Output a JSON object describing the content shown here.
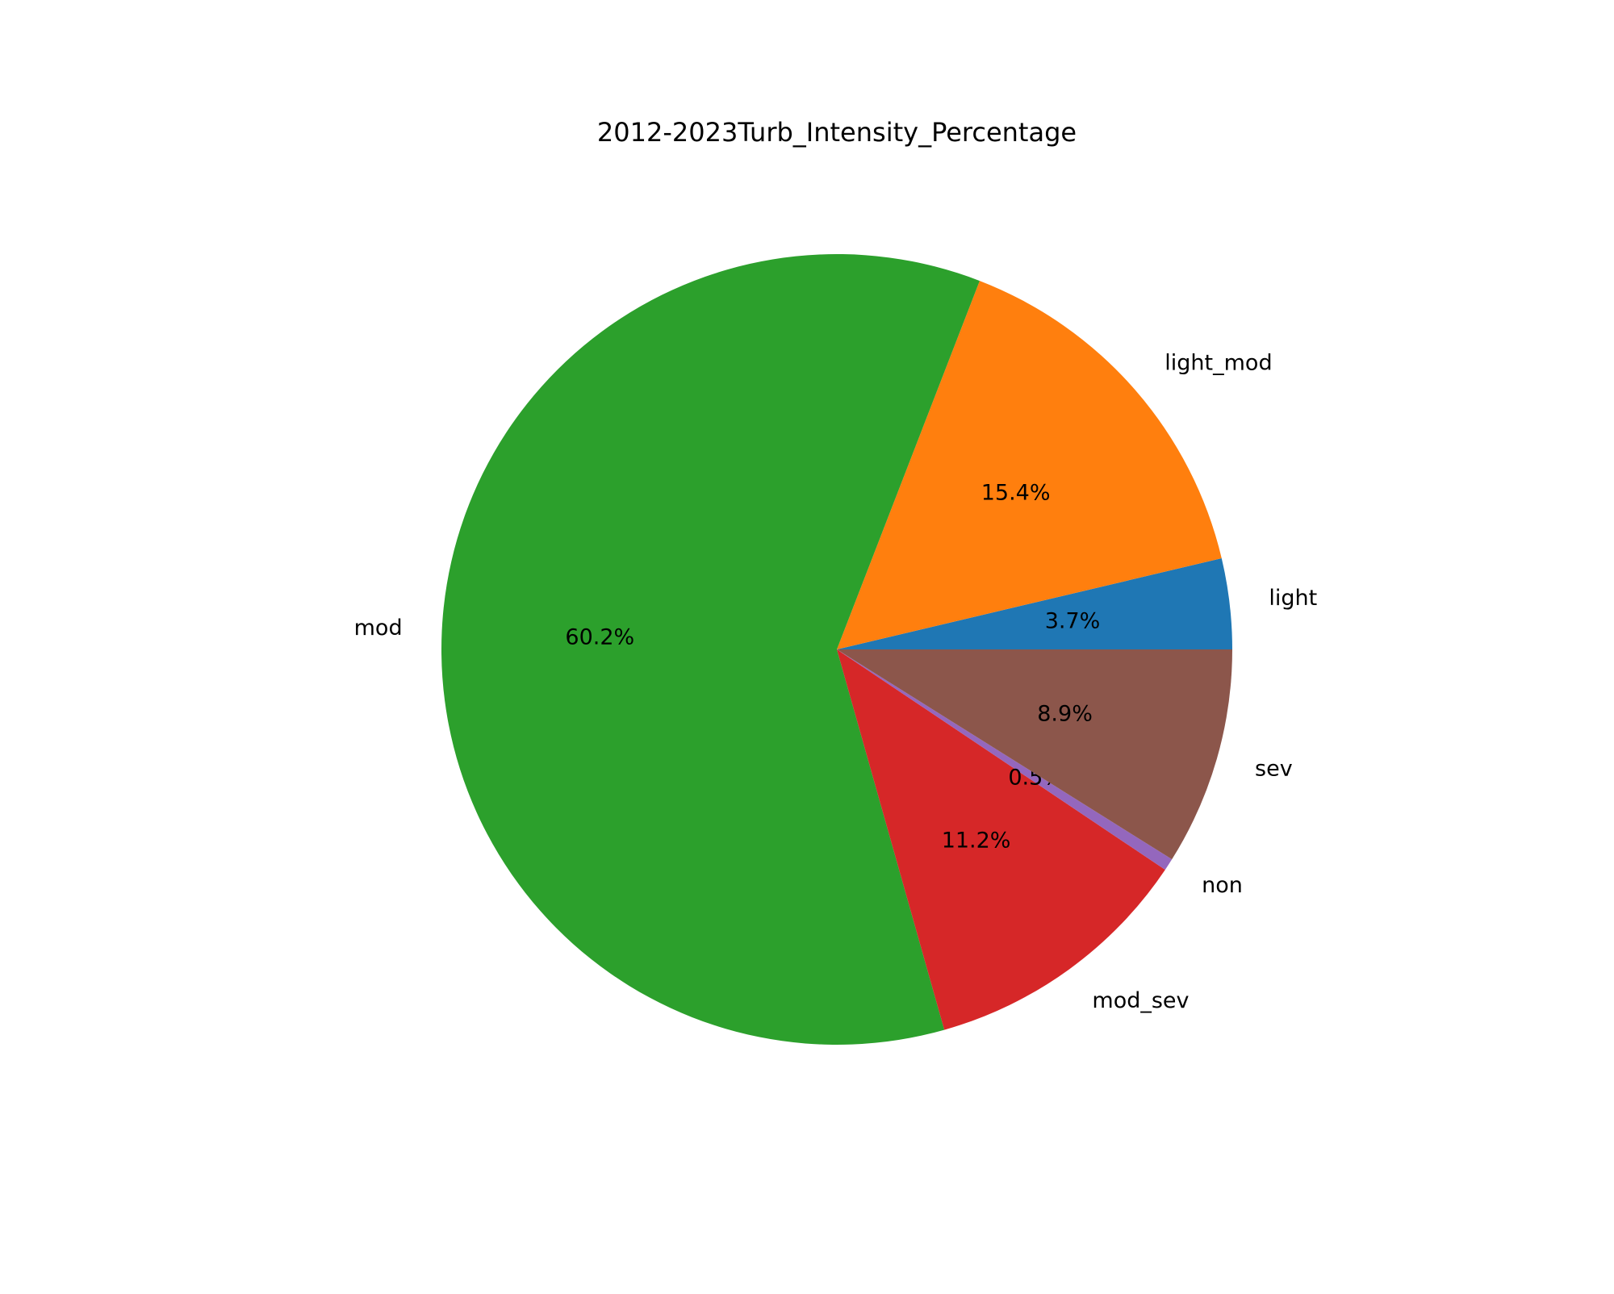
{
  "chart_data": {
    "type": "pie",
    "title": "2012-2023Turb_Intensity_Percentage",
    "categories": [
      "light",
      "light_mod",
      "mod",
      "mod_sev",
      "non",
      "sev"
    ],
    "values": [
      3.7,
      15.4,
      60.2,
      11.2,
      0.5,
      8.9
    ],
    "value_labels": [
      "3.7%",
      "15.4%",
      "60.2%",
      "11.2%",
      "0.5%",
      "8.9%"
    ],
    "colors": [
      "#1f77b4",
      "#ff7f0e",
      "#2ca02c",
      "#d62728",
      "#9467bd",
      "#8c564b"
    ]
  }
}
